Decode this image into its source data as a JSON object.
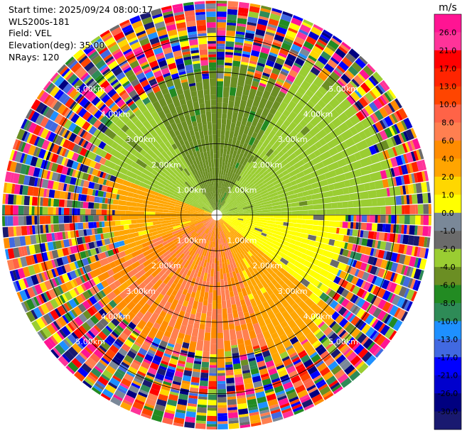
{
  "info": {
    "start_time": "Start time: 2025/09/24 08:00:17",
    "instrument": "WLS200s-181",
    "field": "Field: VEL",
    "elevation": "Elevation(deg): 35.00",
    "nrays": "NRays: 120"
  },
  "chart_data": {
    "type": "polar_ppi",
    "field": "VEL",
    "units": "m/s",
    "n_rays": 120,
    "max_range_km": 6,
    "range_rings_km": [
      1,
      2,
      3,
      4,
      5
    ],
    "ring_labels": [
      "1.00km",
      "2.00km",
      "3.00km",
      "4.00km",
      "5.00km"
    ],
    "colorbar": {
      "unit_label": "m/s",
      "ticks": [
        "26.0",
        "21.0",
        "17.0",
        "13.0",
        "10.0",
        "8.0",
        "6.0",
        "4.0",
        "2.0",
        "1.0",
        "0.0",
        "-1.0",
        "-2.0",
        "-4.0",
        "-6.0",
        "-8.0",
        "-10.0",
        "-13.0",
        "-17.0",
        "-21.0",
        "-26.0",
        "-30.0"
      ],
      "colors": [
        "#ff1493",
        "#ff3399",
        "#ff0000",
        "#ff2400",
        "#ff4500",
        "#ff6347",
        "#ff7f50",
        "#ff8c00",
        "#ffa500",
        "#ffd700",
        "#ffff00",
        "#7a8898",
        "#6b6b6b",
        "#9acd32",
        "#6b8e23",
        "#228b22",
        "#2e8b57",
        "#1e90ff",
        "#4169e1",
        "#0000ff",
        "#0000cd",
        "#000080",
        "#191970"
      ]
    },
    "sectors": [
      {
        "az_from": 0,
        "az_to": 30,
        "range_to_km": 3.8,
        "value_range": [
          -6,
          -4
        ],
        "note": "north"
      },
      {
        "az_from": 30,
        "az_to": 90,
        "range_to_km": 4.8,
        "value_range": [
          -4,
          -2
        ]
      },
      {
        "az_from": 90,
        "az_to": 130,
        "range_to_km": 3.5,
        "value_range": [
          0,
          1
        ]
      },
      {
        "az_from": 130,
        "az_to": 160,
        "range_to_km": 4.2,
        "value_range": [
          2,
          4
        ]
      },
      {
        "az_from": 160,
        "az_to": 250,
        "range_to_km": 3.8,
        "value_range": [
          4,
          8
        ]
      },
      {
        "az_from": 250,
        "az_to": 290,
        "range_to_km": 2.8,
        "value_range": [
          2,
          4
        ]
      },
      {
        "az_from": 290,
        "az_to": 330,
        "range_to_km": 3.6,
        "value_range": [
          -4,
          -2
        ]
      },
      {
        "az_from": 330,
        "az_to": 360,
        "range_to_km": 3.8,
        "value_range": [
          -6,
          -4
        ]
      }
    ],
    "outer_region": "noisy / speckled values at long range"
  }
}
